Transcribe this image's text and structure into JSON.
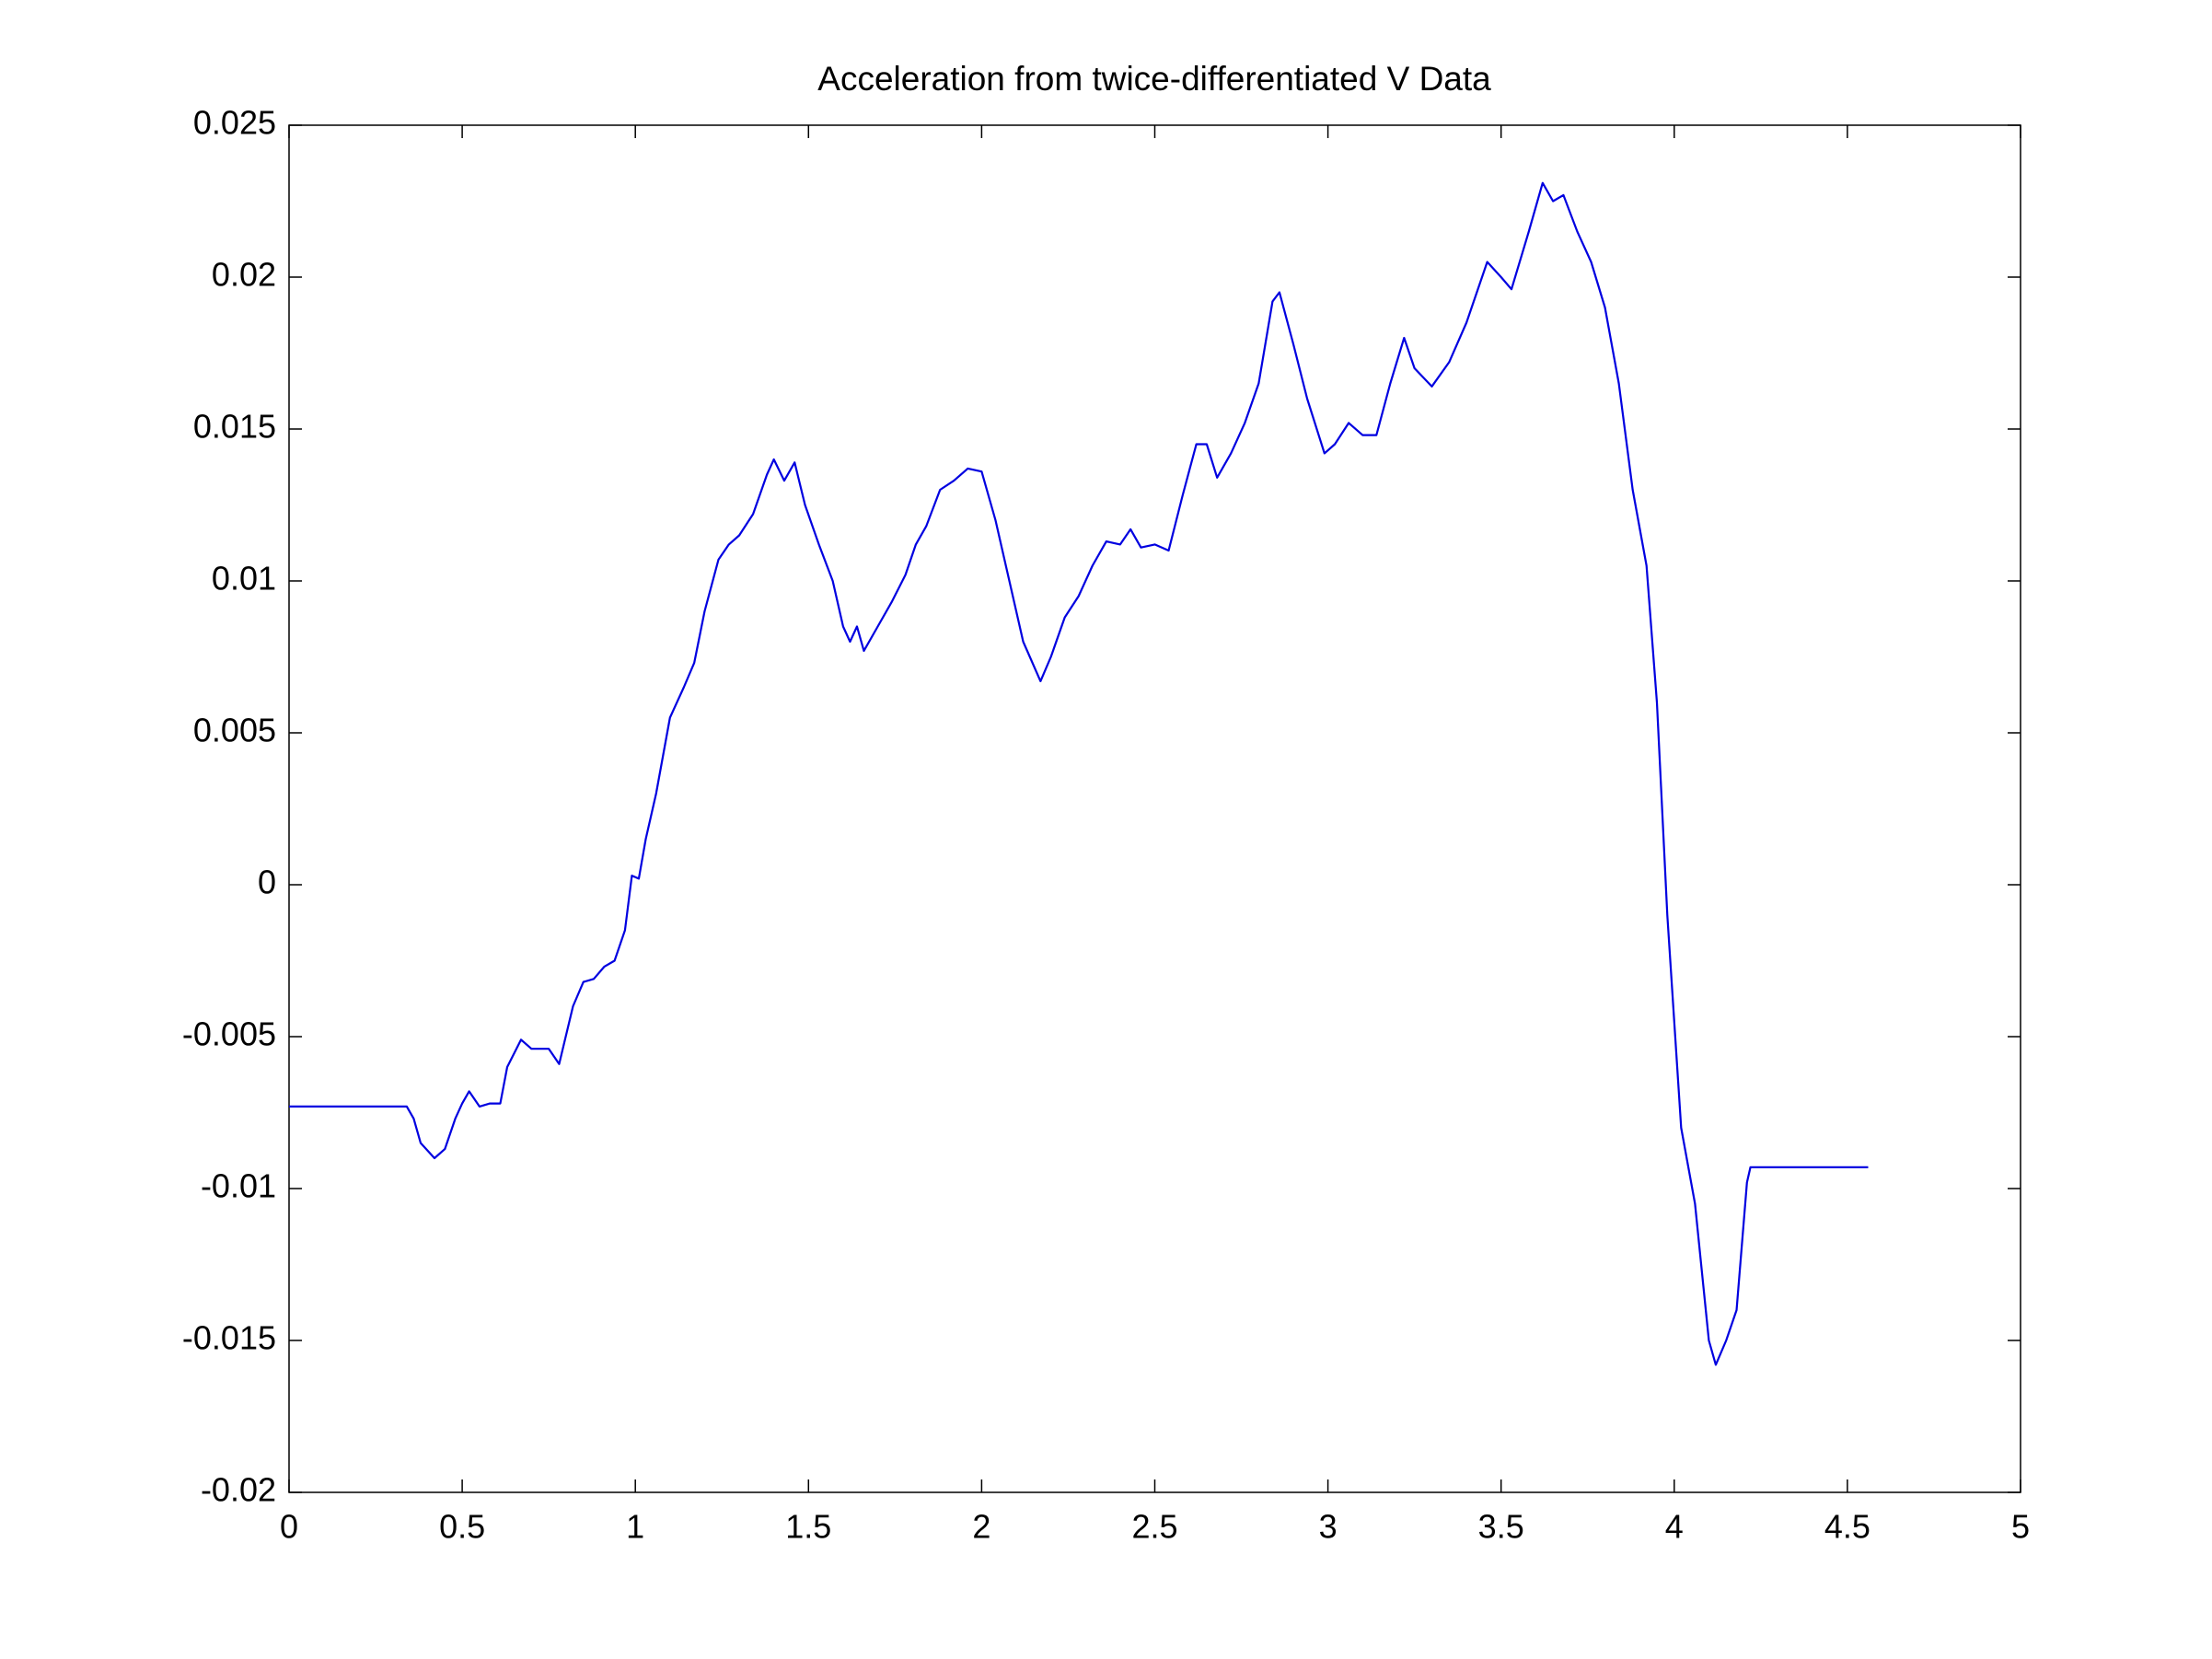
{
  "chart_data": {
    "type": "line",
    "title": "Acceleration from twice-differentiated V Data",
    "xlim": [
      0,
      5
    ],
    "xticks": [
      0,
      0.5,
      1,
      1.5,
      2,
      2.5,
      3,
      3.5,
      4,
      4.5,
      5
    ],
    "ylim": [
      -0.02,
      0.025
    ],
    "yticks": [
      -0.02,
      -0.015,
      -0.01,
      -0.005,
      0,
      0.005,
      0.01,
      0.015,
      0.02,
      0.025
    ],
    "grid": false,
    "series": [
      {
        "color": "#0000e0",
        "x": [
          0,
          0.34,
          0.36,
          0.38,
          0.42,
          0.45,
          0.48,
          0.5,
          0.52,
          0.55,
          0.58,
          0.61,
          0.63,
          0.67,
          0.7,
          0.75,
          0.78,
          0.82,
          0.85,
          0.88,
          0.91,
          0.94,
          0.97,
          0.99,
          1.01,
          1.03,
          1.06,
          1.1,
          1.14,
          1.17,
          1.2,
          1.24,
          1.27,
          1.3,
          1.34,
          1.38,
          1.4,
          1.43,
          1.46,
          1.49,
          1.53,
          1.57,
          1.6,
          1.62,
          1.64,
          1.66,
          1.7,
          1.74,
          1.78,
          1.81,
          1.84,
          1.88,
          1.92,
          1.96,
          2.0,
          2.04,
          2.08,
          2.12,
          2.17,
          2.2,
          2.24,
          2.28,
          2.32,
          2.36,
          2.4,
          2.43,
          2.46,
          2.5,
          2.54,
          2.58,
          2.62,
          2.65,
          2.68,
          2.72,
          2.76,
          2.8,
          2.84,
          2.86,
          2.9,
          2.94,
          2.99,
          3.02,
          3.06,
          3.1,
          3.14,
          3.18,
          3.22,
          3.25,
          3.3,
          3.35,
          3.4,
          3.46,
          3.5,
          3.53,
          3.58,
          3.62,
          3.65,
          3.68,
          3.72,
          3.76,
          3.8,
          3.84,
          3.88,
          3.92,
          3.95,
          3.98,
          4.02,
          4.06,
          4.1,
          4.12,
          4.15,
          4.18,
          4.21,
          4.22,
          4.56
        ],
        "values": [
          -0.0073,
          -0.0073,
          -0.0077,
          -0.0085,
          -0.009,
          -0.0087,
          -0.0077,
          -0.0072,
          -0.0068,
          -0.0073,
          -0.0072,
          -0.0072,
          -0.006,
          -0.0051,
          -0.0054,
          -0.0054,
          -0.0059,
          -0.004,
          -0.0032,
          -0.0031,
          -0.0027,
          -0.0025,
          -0.0015,
          0.0003,
          0.0002,
          0.0015,
          0.003,
          0.0055,
          0.0065,
          0.0073,
          0.009,
          0.0107,
          0.0112,
          0.0115,
          0.0122,
          0.0135,
          0.014,
          0.0133,
          0.0139,
          0.0125,
          0.0112,
          0.01,
          0.0085,
          0.008,
          0.0085,
          0.0077,
          0.0085,
          0.0093,
          0.0102,
          0.0112,
          0.0118,
          0.013,
          0.0133,
          0.0137,
          0.0136,
          0.012,
          0.01,
          0.008,
          0.0067,
          0.0075,
          0.0088,
          0.0095,
          0.0105,
          0.0113,
          0.0112,
          0.0117,
          0.0111,
          0.0112,
          0.011,
          0.0128,
          0.0145,
          0.0145,
          0.0134,
          0.0142,
          0.0152,
          0.0165,
          0.0192,
          0.0195,
          0.0178,
          0.016,
          0.0142,
          0.0145,
          0.0152,
          0.0148,
          0.0148,
          0.0165,
          0.018,
          0.017,
          0.0164,
          0.0172,
          0.0185,
          0.0205,
          0.02,
          0.0196,
          0.0215,
          0.0231,
          0.0225,
          0.0227,
          0.0215,
          0.0205,
          0.019,
          0.0165,
          0.013,
          0.0105,
          0.006,
          -0.001,
          -0.008,
          -0.0105,
          -0.015,
          -0.0158,
          -0.015,
          -0.014,
          -0.0098,
          -0.0093,
          -0.0093
        ]
      }
    ]
  }
}
